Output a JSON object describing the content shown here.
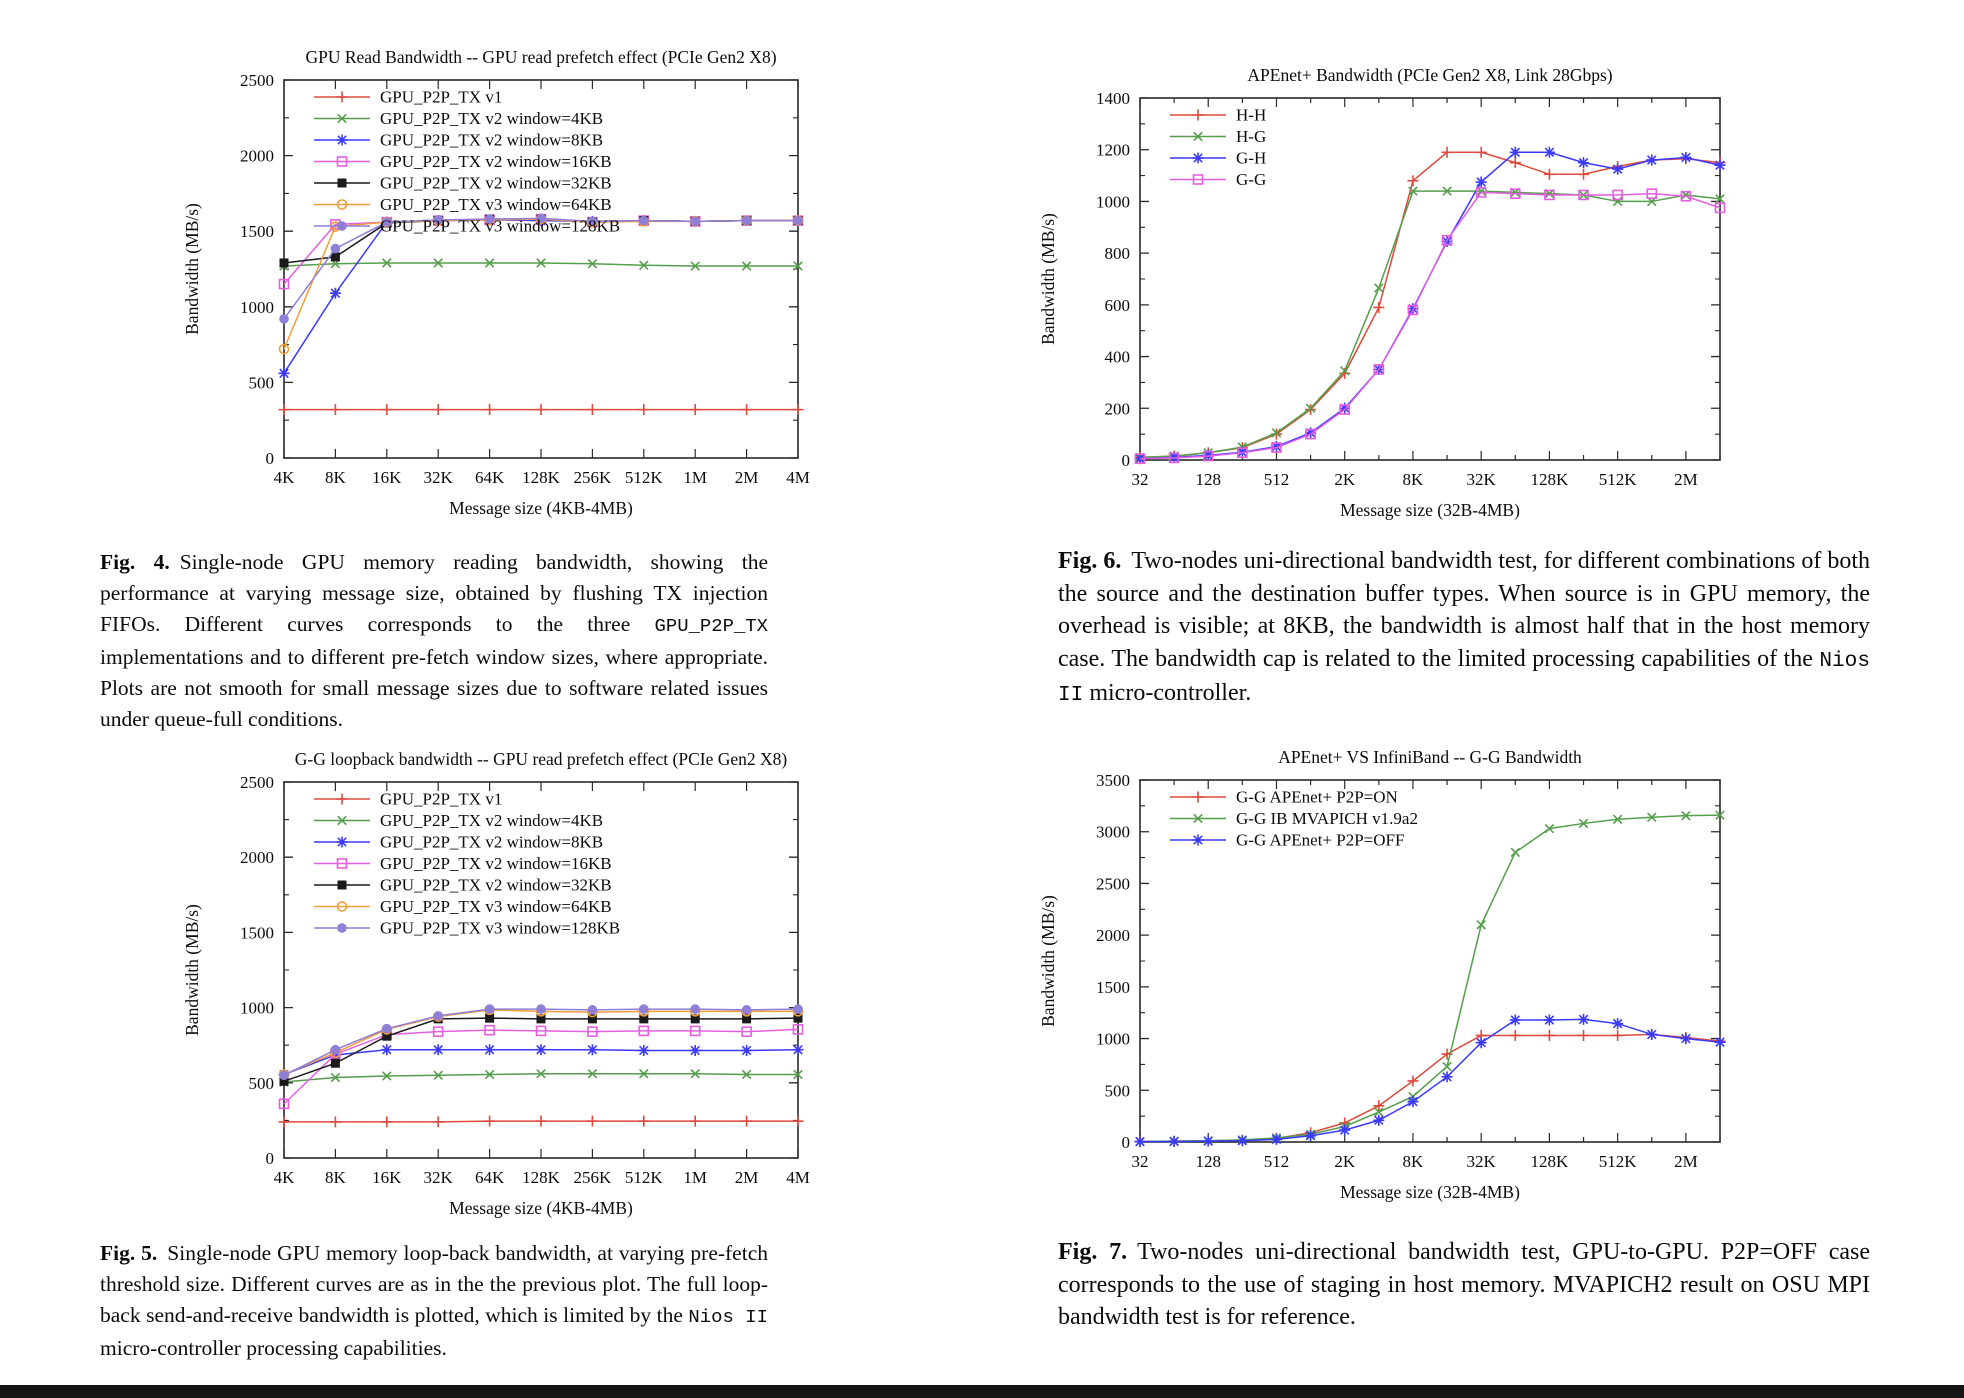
{
  "page": {
    "background": "#ffffff",
    "footer_bar_color": "#161616"
  },
  "chart_data": [
    {
      "id": "fig4",
      "type": "line",
      "title": "GPU Read Bandwidth -- GPU read prefetch effect (PCIe Gen2 X8)",
      "xlabel": "Message size (4KB-4MB)",
      "ylabel": "Bandwidth (MB/s)",
      "x_categories": [
        "4K",
        "8K",
        "16K",
        "32K",
        "64K",
        "128K",
        "256K",
        "512K",
        "1M",
        "2M",
        "4M"
      ],
      "x_label_every": 1,
      "ylim": [
        0,
        2500
      ],
      "ytick": 500,
      "grid": false,
      "legend_position": "top-left",
      "series": [
        {
          "name": "GPU_P2P_TX v1",
          "color": "#dd4a3c",
          "marker": "plus",
          "values": [
            320,
            320,
            320,
            320,
            320,
            320,
            320,
            320,
            320,
            320,
            320
          ]
        },
        {
          "name": "GPU_P2P_TX v2 window=4KB",
          "color": "#559e4c",
          "marker": "cross",
          "values": [
            1270,
            1285,
            1290,
            1290,
            1290,
            1290,
            1285,
            1275,
            1270,
            1270,
            1270
          ]
        },
        {
          "name": "GPU_P2P_TX v2 window=8KB",
          "color": "#3a3aff",
          "marker": "star",
          "values": [
            560,
            1090,
            1560,
            1570,
            1575,
            1570,
            1565,
            1570,
            1565,
            1570,
            1570
          ]
        },
        {
          "name": "GPU_P2P_TX v2 window=16KB",
          "color": "#e45fe0",
          "marker": "square-open",
          "values": [
            1150,
            1545,
            1560,
            1570,
            1575,
            1580,
            1560,
            1570,
            1565,
            1570,
            1570
          ]
        },
        {
          "name": "GPU_P2P_TX v2 window=32KB",
          "color": "#1a1a1a",
          "marker": "square-filled",
          "values": [
            1290,
            1330,
            1555,
            1570,
            1580,
            1580,
            1560,
            1570,
            1565,
            1570,
            1570
          ]
        },
        {
          "name": "GPU_P2P_TX v3 window=64KB",
          "color": "#f29d38",
          "marker": "circle-open",
          "values": [
            720,
            1530,
            1560,
            1570,
            1575,
            1580,
            1560,
            1565,
            1565,
            1570,
            1570
          ]
        },
        {
          "name": "GPU_P2P_TX v3 window=128KB",
          "color": "#8f7fd6",
          "marker": "circle-filled",
          "values": [
            920,
            1385,
            1560,
            1575,
            1580,
            1585,
            1565,
            1570,
            1565,
            1570,
            1570
          ]
        }
      ]
    },
    {
      "id": "fig6",
      "type": "line",
      "title": "APEnet+ Bandwidth (PCIe Gen2 X8, Link 28Gbps)",
      "xlabel": "Message size (32B-4MB)",
      "ylabel": "Bandwidth (MB/s)",
      "x_categories": [
        "32",
        "64",
        "128",
        "256",
        "512",
        "1K",
        "2K",
        "4K",
        "8K",
        "16K",
        "32K",
        "64K",
        "128K",
        "256K",
        "512K",
        "1M",
        "2M",
        "4M"
      ],
      "x_label_every": 2,
      "ylim": [
        0,
        1400
      ],
      "ytick": 200,
      "grid": false,
      "legend_position": "top-left",
      "series": [
        {
          "name": "H-H",
          "color": "#dd4a3c",
          "marker": "plus",
          "values": [
            10,
            15,
            28,
            48,
            100,
            195,
            335,
            590,
            1080,
            1190,
            1190,
            1150,
            1105,
            1105,
            1135,
            1160,
            1165,
            1150
          ]
        },
        {
          "name": "H-G",
          "color": "#559e4c",
          "marker": "cross",
          "values": [
            10,
            15,
            28,
            50,
            105,
            200,
            345,
            665,
            1040,
            1040,
            1040,
            1035,
            1030,
            1025,
            1000,
            1000,
            1025,
            1010
          ]
        },
        {
          "name": "G-H",
          "color": "#3a3aff",
          "marker": "star",
          "values": [
            5,
            10,
            18,
            30,
            52,
            105,
            200,
            350,
            585,
            845,
            1075,
            1190,
            1190,
            1150,
            1125,
            1160,
            1170,
            1140
          ]
        },
        {
          "name": "G-G",
          "color": "#e45fe0",
          "marker": "square-open",
          "values": [
            5,
            8,
            15,
            28,
            48,
            100,
            195,
            350,
            580,
            850,
            1035,
            1030,
            1025,
            1025,
            1025,
            1030,
            1020,
            975
          ]
        }
      ]
    },
    {
      "id": "fig5",
      "type": "line",
      "title": "G-G loopback bandwidth -- GPU read prefetch effect (PCIe Gen2 X8)",
      "xlabel": "Message size (4KB-4MB)",
      "ylabel": "Bandwidth (MB/s)",
      "x_categories": [
        "4K",
        "8K",
        "16K",
        "32K",
        "64K",
        "128K",
        "256K",
        "512K",
        "1M",
        "2M",
        "4M"
      ],
      "x_label_every": 1,
      "ylim": [
        0,
        2500
      ],
      "ytick": 500,
      "grid": false,
      "legend_position": "top-left",
      "series": [
        {
          "name": "GPU_P2P_TX v1",
          "color": "#dd4a3c",
          "marker": "plus",
          "values": [
            240,
            240,
            240,
            240,
            245,
            245,
            245,
            245,
            245,
            245,
            245
          ]
        },
        {
          "name": "GPU_P2P_TX v2 window=4KB",
          "color": "#559e4c",
          "marker": "cross",
          "values": [
            505,
            535,
            545,
            550,
            555,
            560,
            560,
            560,
            560,
            555,
            555
          ]
        },
        {
          "name": "GPU_P2P_TX v2 window=8KB",
          "color": "#3a3aff",
          "marker": "star",
          "values": [
            555,
            685,
            720,
            720,
            720,
            720,
            720,
            715,
            715,
            715,
            720
          ]
        },
        {
          "name": "GPU_P2P_TX v2 window=16KB",
          "color": "#e45fe0",
          "marker": "square-open",
          "values": [
            360,
            690,
            820,
            840,
            850,
            845,
            840,
            845,
            845,
            840,
            855
          ]
        },
        {
          "name": "GPU_P2P_TX v2 window=32KB",
          "color": "#1a1a1a",
          "marker": "square-filled",
          "values": [
            510,
            630,
            810,
            925,
            930,
            925,
            925,
            925,
            925,
            925,
            930
          ]
        },
        {
          "name": "GPU_P2P_TX v3 window=64KB",
          "color": "#f29d38",
          "marker": "circle-open",
          "values": [
            555,
            700,
            855,
            940,
            985,
            975,
            970,
            975,
            975,
            975,
            975
          ]
        },
        {
          "name": "GPU_P2P_TX v3 window=128KB",
          "color": "#8f7fd6",
          "marker": "circle-filled",
          "values": [
            550,
            720,
            860,
            945,
            990,
            990,
            985,
            990,
            990,
            985,
            990
          ]
        }
      ]
    },
    {
      "id": "fig7",
      "type": "line",
      "title": "APEnet+ VS InfiniBand -- G-G Bandwidth",
      "xlabel": "Message size (32B-4MB)",
      "ylabel": "Bandwidth (MB/s)",
      "x_categories": [
        "32",
        "64",
        "128",
        "256",
        "512",
        "1K",
        "2K",
        "4K",
        "8K",
        "16K",
        "32K",
        "64K",
        "128K",
        "256K",
        "512K",
        "1M",
        "2M",
        "4M"
      ],
      "x_label_every": 2,
      "ylim": [
        0,
        3500
      ],
      "ytick": 500,
      "grid": false,
      "legend_position": "top-left",
      "series": [
        {
          "name": "G-G APEnet+ P2P=ON",
          "color": "#dd4a3c",
          "marker": "plus",
          "values": [
            5,
            8,
            12,
            18,
            35,
            90,
            185,
            350,
            590,
            850,
            1030,
            1030,
            1030,
            1030,
            1030,
            1040,
            1010,
            975
          ]
        },
        {
          "name": "G-G IB MVAPICH v1.9a2",
          "color": "#559e4c",
          "marker": "cross",
          "values": [
            5,
            8,
            12,
            20,
            40,
            75,
            150,
            290,
            440,
            730,
            2100,
            2800,
            3030,
            3080,
            3120,
            3140,
            3155,
            3160
          ]
        },
        {
          "name": "G-G APEnet+ P2P=OFF",
          "color": "#3a3aff",
          "marker": "star",
          "values": [
            3,
            5,
            8,
            12,
            25,
            60,
            115,
            210,
            390,
            630,
            960,
            1180,
            1180,
            1185,
            1145,
            1040,
            1000,
            965
          ]
        }
      ]
    }
  ],
  "captions": {
    "fig4": {
      "label": "Fig. 4.",
      "segments": [
        {
          "text": "Single-node GPU memory reading bandwidth, showing the performance at varying message size, obtained by flushing TX injection FIFOs. Different curves corresponds to the three "
        },
        {
          "mono": "GPU_P2P_TX"
        },
        {
          "text": " implementations and to different pre-fetch window sizes, where appropriate. Plots are not smooth for small message sizes due to software related issues under queue-full conditions."
        }
      ]
    },
    "fig5": {
      "label": "Fig. 5.",
      "segments": [
        {
          "text": "Single-node GPU memory loop-back bandwidth, at varying pre-fetch threshold size. Different curves are as in the the previous plot. The full loop-back send-and-receive bandwidth is plotted, which is limited by the "
        },
        {
          "mono": "Nios II"
        },
        {
          "text": " micro-controller processing capabilities."
        }
      ]
    },
    "fig6": {
      "label": "Fig. 6.",
      "segments": [
        {
          "text": "Two-nodes uni-directional bandwidth test, for different combinations of both the source and the destination buffer types. When source is in GPU memory, the overhead is visible; at 8KB, the bandwidth is almost half that in the host memory case. The bandwidth cap is related to the limited processing capabilities of the "
        },
        {
          "mono": "Nios II"
        },
        {
          "text": " micro-controller."
        }
      ]
    },
    "fig7": {
      "label": "Fig. 7.",
      "segments": [
        {
          "text": "Two-nodes uni-directional bandwidth test, GPU-to-GPU. P2P=OFF case corresponds to the use of staging in host memory. MVAPICH2 result on OSU MPI bandwidth test is for reference."
        }
      ]
    }
  }
}
